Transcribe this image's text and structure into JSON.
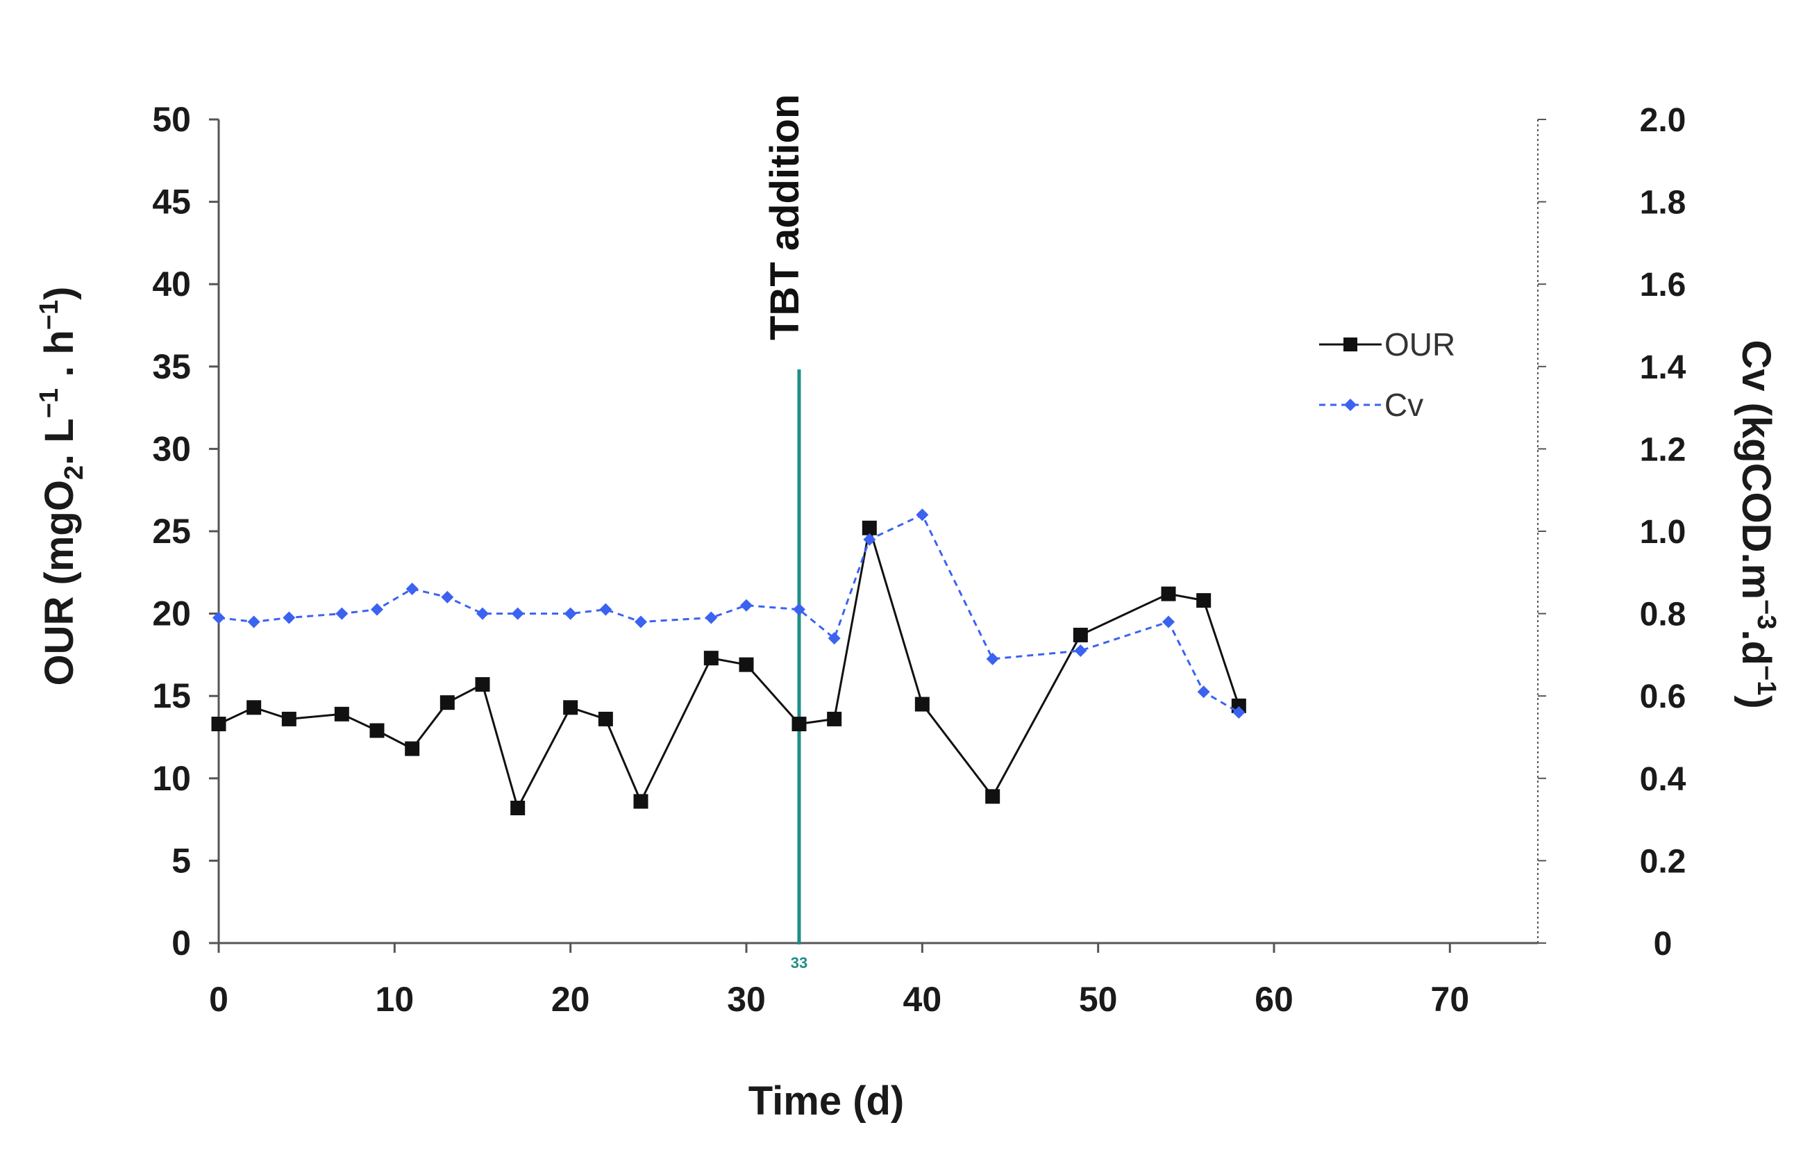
{
  "colors": {
    "our": "#111111",
    "cv": "#3b63f0",
    "event": "#1f8f86",
    "axis": "#555555"
  },
  "chart_data": {
    "type": "line",
    "xlabel": "Time (d)",
    "ylabel_left": {
      "pre": "OUR (mgO",
      "o2_sub": "2",
      "mid1": ". L",
      "sup1": "−1",
      "mid2": " . h",
      "sup2": "−1",
      "post": ")"
    },
    "ylabel_right": {
      "pre": "Cv (kgCOD.m",
      "sup1": "−3",
      "mid": ".d",
      "sup2": "−1",
      "post": ")"
    },
    "xlim": [
      0,
      75
    ],
    "ylim_left": [
      0,
      50
    ],
    "ylim_right": [
      0,
      2.0
    ],
    "x_ticks": [
      "0",
      "10",
      "20",
      "30",
      "40",
      "50",
      "60",
      "70"
    ],
    "y_ticks_left": [
      "0",
      "5",
      "10",
      "15",
      "20",
      "25",
      "30",
      "35",
      "40",
      "45",
      "50"
    ],
    "y_ticks_right": [
      "0",
      "0.2",
      "0.4",
      "0.6",
      "0.8",
      "1.0",
      "1.2",
      "1.4",
      "1.6",
      "1.8",
      "2.0"
    ],
    "legend_position": "right",
    "series": [
      {
        "name": "OUR",
        "axis": "left",
        "marker": "square",
        "style": "solid",
        "x": [
          0,
          2,
          4,
          7,
          9,
          11,
          13,
          15,
          17,
          20,
          22,
          24,
          28,
          30,
          33,
          35,
          37,
          40,
          44,
          49,
          54,
          56,
          58
        ],
        "y": [
          13.3,
          14.3,
          13.6,
          13.9,
          12.9,
          11.8,
          14.6,
          15.7,
          8.2,
          14.3,
          13.6,
          8.6,
          17.3,
          16.9,
          13.3,
          13.6,
          25.2,
          14.5,
          8.9,
          18.7,
          21.2,
          20.8,
          14.4
        ]
      },
      {
        "name": "Cv",
        "axis": "right",
        "marker": "diamond",
        "style": "dotted",
        "x": [
          0,
          2,
          4,
          7,
          9,
          11,
          13,
          15,
          17,
          20,
          22,
          24,
          28,
          30,
          33,
          35,
          37,
          40,
          44,
          49,
          54,
          56,
          58
        ],
        "y": [
          0.79,
          0.78,
          0.79,
          0.8,
          0.81,
          0.86,
          0.84,
          0.8,
          0.8,
          0.8,
          0.81,
          0.78,
          0.79,
          0.82,
          0.81,
          0.74,
          0.98,
          1.04,
          0.69,
          0.71,
          0.78,
          0.61,
          0.56
        ]
      }
    ],
    "annotations": [
      {
        "text": "TBT addition",
        "x": 33,
        "label": "33"
      }
    ]
  }
}
